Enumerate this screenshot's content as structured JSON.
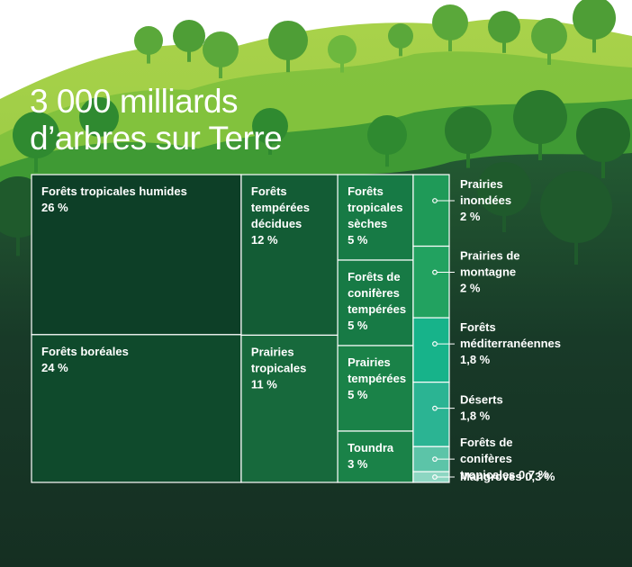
{
  "title": {
    "line1": "3 000 milliards",
    "line2": "d’arbres sur Terre"
  },
  "colors": {
    "sky": "#a9d24a",
    "hill_light": "#7cbf3c",
    "hill_mid": "#3f9a34",
    "forest_dark": "#235a32",
    "ground": "#183a28"
  },
  "chart_data": {
    "type": "treemap",
    "unit": "%",
    "items": [
      {
        "name": "Forêts tropicales humides",
        "label": [
          "Forêts tropicales humides",
          "26 %"
        ],
        "value": 26,
        "color": "#0d3f27",
        "label_pos": "inside"
      },
      {
        "name": "Forêts boréales",
        "label": [
          "Forêts boréales",
          "24 %"
        ],
        "value": 24,
        "color": "#0f4a2c",
        "label_pos": "inside"
      },
      {
        "name": "Forêts tempérées décidues",
        "label": [
          "Forêts",
          "tempérées",
          "décidues",
          "12 %"
        ],
        "value": 12,
        "color": "#135c35",
        "label_pos": "inside"
      },
      {
        "name": "Prairies tropicales",
        "label": [
          "Prairies",
          "tropicales",
          "11 %"
        ],
        "value": 11,
        "color": "#17693c",
        "label_pos": "inside"
      },
      {
        "name": "Forêts tropicales sèches",
        "label": [
          "Forêts",
          "tropicales",
          "sèches",
          "5 %"
        ],
        "value": 5,
        "color": "#177a45",
        "label_pos": "inside"
      },
      {
        "name": "Forêts de conifères tempérées",
        "label": [
          "Forêts de",
          "conifères",
          "tempérées",
          "5 %"
        ],
        "value": 5,
        "color": "#177a45",
        "label_pos": "inside"
      },
      {
        "name": "Prairies tempérées",
        "label": [
          "Prairies",
          "tempérées",
          "5 %"
        ],
        "value": 5,
        "color": "#1a8248",
        "label_pos": "inside"
      },
      {
        "name": "Toundra",
        "label": [
          "Toundra",
          "3 %"
        ],
        "value": 3,
        "color": "#1a8248",
        "label_pos": "inside"
      },
      {
        "name": "Prairies inondées",
        "label": [
          "Prairies",
          "inondées",
          "2 %"
        ],
        "value": 2,
        "color": "#1f9a58",
        "label_pos": "outside"
      },
      {
        "name": "Prairies de montagne",
        "label": [
          "Prairies de",
          "montagne",
          "2 %"
        ],
        "value": 2,
        "color": "#22a260",
        "label_pos": "outside"
      },
      {
        "name": "Forêts méditerranéennes",
        "label": [
          "Forêts",
          "méditerranéennes",
          "1,8 %"
        ],
        "value": 1.8,
        "color": "#17b38a",
        "label_pos": "outside"
      },
      {
        "name": "Déserts",
        "label": [
          "Déserts",
          "1,8 %"
        ],
        "value": 1.8,
        "color": "#2bb493",
        "label_pos": "outside"
      },
      {
        "name": "Forêts de conifères tropicales",
        "label": [
          "Forêts de",
          "conifères",
          "tropicales 0,7 %"
        ],
        "value": 0.7,
        "color": "#5cc4a8",
        "label_pos": "outside"
      },
      {
        "name": "Mangroves",
        "label": [
          "Mangroves 0,3 %"
        ],
        "value": 0.3,
        "color": "#8dd6c2",
        "label_pos": "outside"
      }
    ]
  }
}
